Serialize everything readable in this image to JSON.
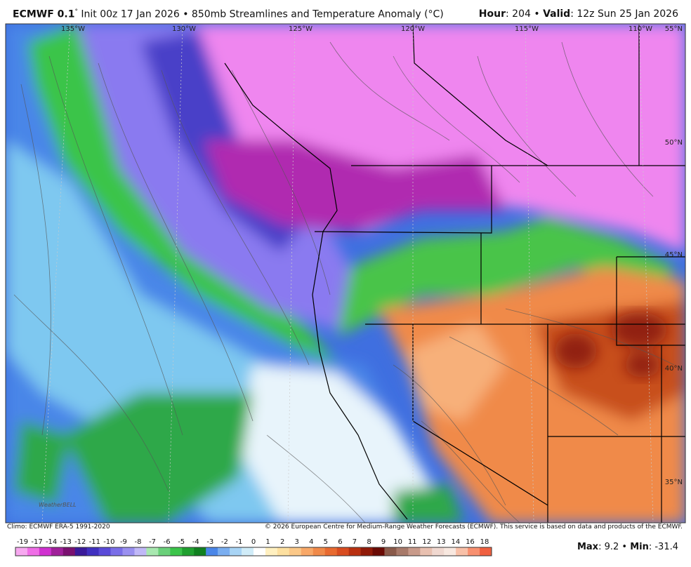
{
  "header": {
    "model": "ECMWF 0.1",
    "degree": "°",
    "description": "Init 00z 17 Jan 2026 • 850mb Streamlines and Temperature Anomaly (°C)",
    "hour_label": "Hour",
    "hour_value": ": 204 • ",
    "valid_label": "Valid",
    "valid_value": ": 12z Sun 25 Jan 2026"
  },
  "map": {
    "longitudes": [
      "135°W",
      "130°W",
      "125°W",
      "120°W",
      "115°W",
      "110°W"
    ],
    "latitudes": [
      "55°N",
      "50°N",
      "45°N",
      "40°N",
      "35°N"
    ],
    "logo": "WeatherBELL"
  },
  "footer": {
    "climo": "Climo: ECMWF ERA-5 1991-2020",
    "copyright": "© 2026 European Centre for Medium-Range Weather Forecasts (ECMWF). This service is based on data and products of the ECMWF."
  },
  "colorbar": {
    "labels": [
      -19,
      -17,
      -14,
      -13,
      -12,
      -11,
      -10,
      -9,
      -8,
      -7,
      -6,
      -5,
      -4,
      -3,
      -2,
      -1,
      0,
      1,
      2,
      3,
      4,
      5,
      6,
      7,
      8,
      9,
      10,
      11,
      12,
      13,
      14,
      16,
      18
    ]
  },
  "stats": {
    "max_label": "Max",
    "max_value": ": 9.2 • ",
    "min_label": "Min",
    "min_value": ": -31.4"
  }
}
